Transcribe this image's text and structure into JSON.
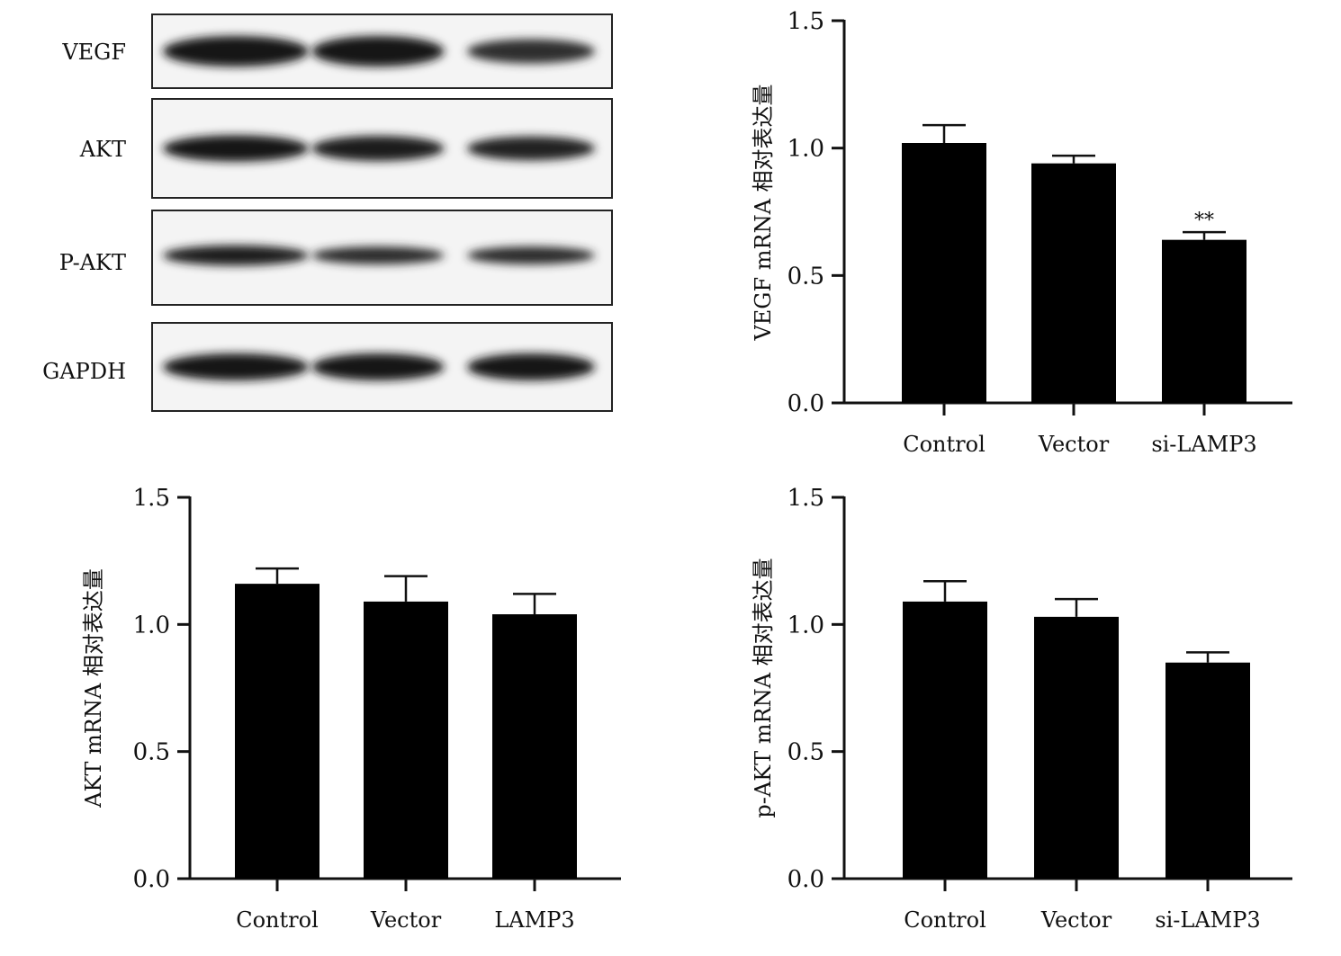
{
  "blot": {
    "labels": [
      "VEGF",
      "AKT",
      "P-AKT",
      "GAPDH"
    ],
    "intensity": [
      [
        1.0,
        1.0,
        0.55
      ],
      [
        0.95,
        0.85,
        0.75
      ],
      [
        0.85,
        0.6,
        0.6
      ],
      [
        1.0,
        1.0,
        1.0
      ]
    ]
  },
  "chart_data": [
    {
      "type": "bar",
      "categories": [
        "Control",
        "Vector",
        "si-LAMP3"
      ],
      "values": [
        1.02,
        0.94,
        0.64
      ],
      "errors": [
        0.07,
        0.03,
        0.03
      ],
      "annotations": [
        "",
        "",
        "**"
      ],
      "ylabel": "VEGF mRNA 相对表达量",
      "xlabel": "",
      "ylim": [
        0,
        1.5
      ],
      "yticks": [
        "0.0",
        "0.5",
        "1.0",
        "1.5"
      ]
    },
    {
      "type": "bar",
      "categories": [
        "Control",
        "Vector",
        "LAMP3"
      ],
      "values": [
        1.16,
        1.09,
        1.04
      ],
      "errors": [
        0.06,
        0.1,
        0.08
      ],
      "annotations": [
        "",
        "",
        ""
      ],
      "ylabel": "AKT mRNA 相对表达量",
      "xlabel": "",
      "ylim": [
        0,
        1.5
      ],
      "yticks": [
        "0.0",
        "0.5",
        "1.0",
        "1.5"
      ]
    },
    {
      "type": "bar",
      "categories": [
        "Control",
        "Vector",
        "si-LAMP3"
      ],
      "values": [
        1.09,
        1.03,
        0.85
      ],
      "errors": [
        0.08,
        0.07,
        0.04
      ],
      "annotations": [
        "",
        "",
        ""
      ],
      "ylabel": "p-AKT mRNA 相对表达量",
      "xlabel": "",
      "ylim": [
        0,
        1.5
      ],
      "yticks": [
        "0.0",
        "0.5",
        "1.0",
        "1.5"
      ]
    }
  ]
}
